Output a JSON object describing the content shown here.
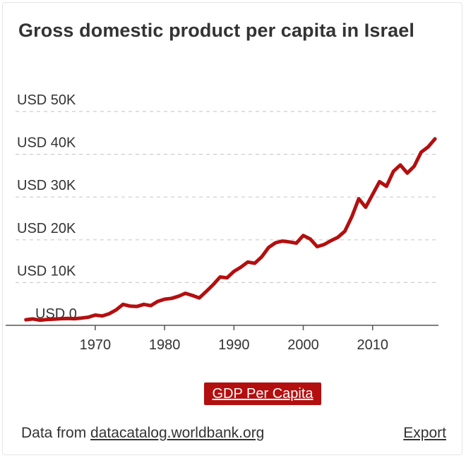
{
  "chart_data": {
    "type": "line",
    "title": "Gross domestic product per capita in Israel",
    "xlabel": "",
    "ylabel": "",
    "x_ticks": [
      1970,
      1980,
      1990,
      2000,
      2010
    ],
    "y_ticks": [
      0,
      10000,
      20000,
      30000,
      40000,
      50000
    ],
    "y_tick_labels": [
      "USD 0",
      "USD 10K",
      "USD 20K",
      "USD 30K",
      "USD 40K",
      "USD 50K"
    ],
    "xlim": [
      1958.5,
      2019.5
    ],
    "ylim": [
      0,
      50000
    ],
    "series": [
      {
        "name": "GDP Per Capita",
        "color": "#b30f0f",
        "x": [
          1960,
          1961,
          1962,
          1963,
          1964,
          1965,
          1966,
          1967,
          1968,
          1969,
          1970,
          1971,
          1972,
          1973,
          1974,
          1975,
          1976,
          1977,
          1978,
          1979,
          1980,
          1981,
          1982,
          1983,
          1984,
          1985,
          1986,
          1987,
          1988,
          1989,
          1990,
          1991,
          1992,
          1993,
          1994,
          1995,
          1996,
          1997,
          1998,
          1999,
          2000,
          2001,
          2002,
          2003,
          2004,
          2005,
          2006,
          2007,
          2008,
          2009,
          2010,
          2011,
          2012,
          2013,
          2014,
          2015,
          2016,
          2017,
          2018,
          2019
        ],
        "values": [
          1300,
          1500,
          1200,
          1350,
          1450,
          1550,
          1600,
          1550,
          1700,
          1900,
          2400,
          2200,
          2700,
          3600,
          4900,
          4500,
          4400,
          4900,
          4600,
          5600,
          6100,
          6300,
          6800,
          7500,
          7000,
          6400,
          7900,
          9500,
          11300,
          11100,
          12600,
          13600,
          14800,
          14500,
          16000,
          18200,
          19300,
          19700,
          19500,
          19200,
          21000,
          20200,
          18400,
          18900,
          19800,
          20600,
          22000,
          25400,
          29600,
          27600,
          30600,
          33600,
          32500,
          36000,
          37500,
          35600,
          37200,
          40500,
          41700,
          43600
        ]
      }
    ]
  },
  "legend": {
    "label": "GDP Per Capita",
    "color": "#b30f0f"
  },
  "footer": {
    "prefix": "Data from ",
    "link_text": "datacatalog.worldbank.org"
  },
  "export_label": "Export",
  "colors": {
    "grid": "#cccccc",
    "axis": "#555555",
    "text": "#333333"
  }
}
